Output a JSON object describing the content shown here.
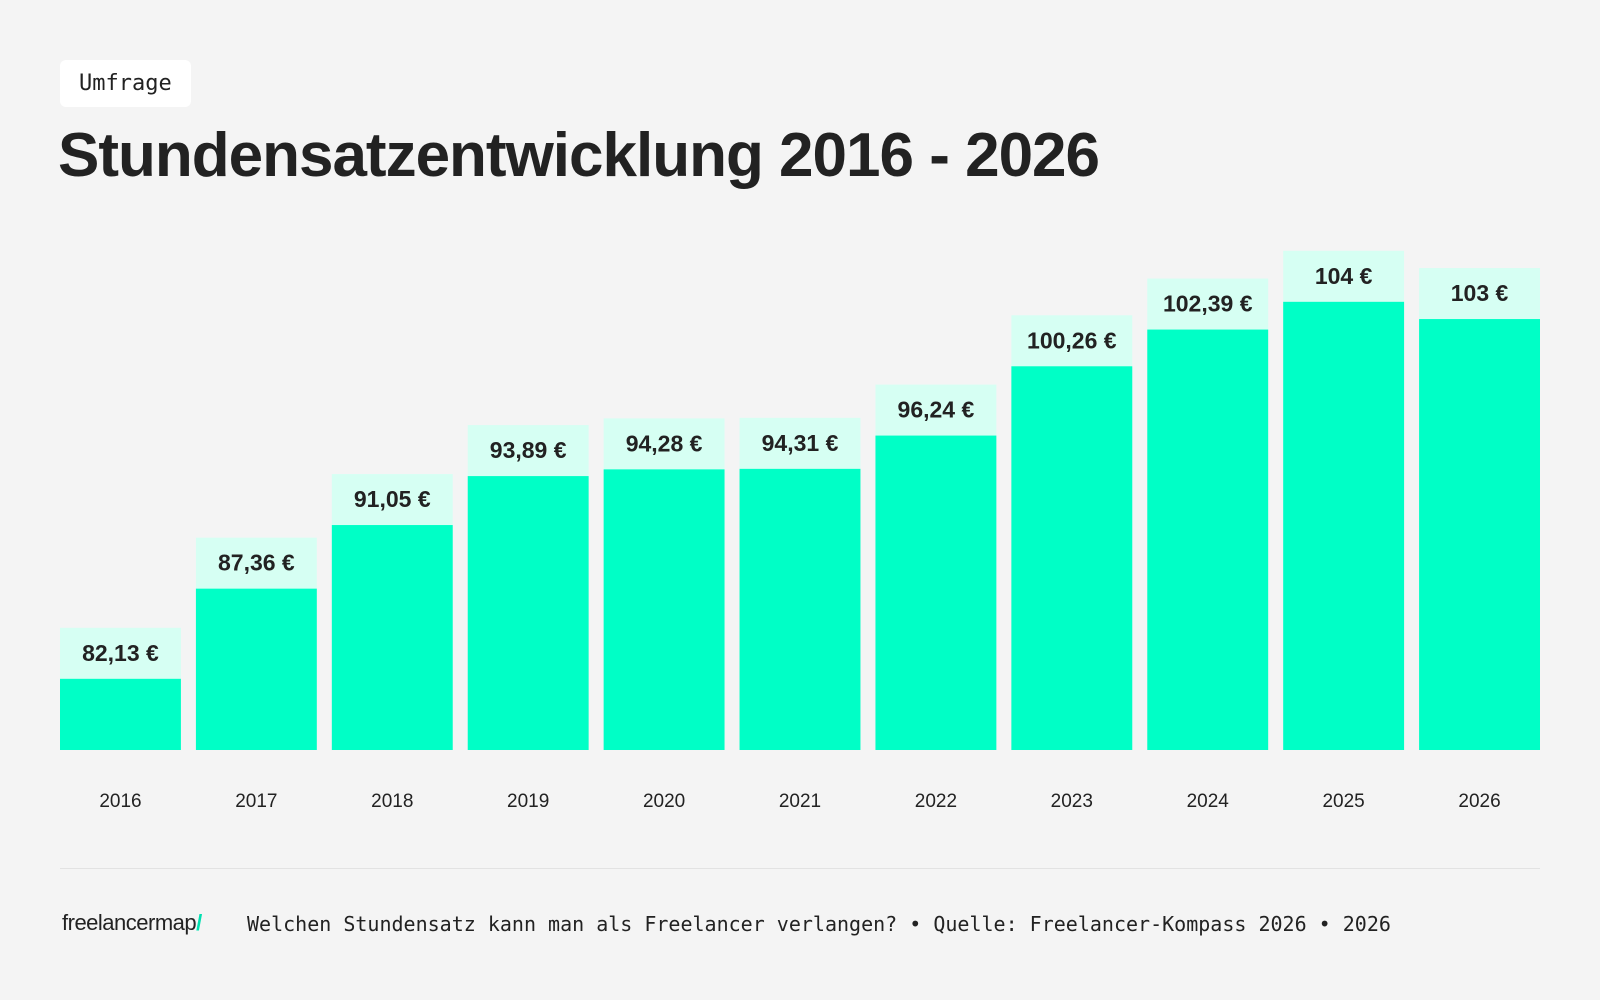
{
  "tag": "Umfrage",
  "title": "Stundensatzentwicklung 2016 - 2026",
  "footer": {
    "logo_text": "freelancermap",
    "logo_mark": "/",
    "caption": "Welchen Stundensatz kann man als Freelancer verlangen? • Quelle: Freelancer-Kompass 2026 • 2026"
  },
  "colors": {
    "bar": "#00ffc6",
    "label_box": "#d6fff3",
    "text": "#222222",
    "background": "#f4f4f4"
  },
  "chart_data": {
    "type": "bar",
    "categories": [
      "2016",
      "2017",
      "2018",
      "2019",
      "2020",
      "2021",
      "2022",
      "2023",
      "2024",
      "2025",
      "2026"
    ],
    "values": [
      82.13,
      87.36,
      91.05,
      93.89,
      94.28,
      94.31,
      96.24,
      100.26,
      102.39,
      104,
      103
    ],
    "data_labels": [
      "82,13 €",
      "87,36 €",
      "91,05 €",
      "93,89 €",
      "94,28 €",
      "94,31 €",
      "96,24 €",
      "100,26 €",
      "102,39 €",
      "104 €",
      "103 €"
    ],
    "title": "Stundensatzentwicklung 2016 - 2026",
    "xlabel": "",
    "ylabel": "",
    "ylim": [
      78,
      104
    ],
    "grid": false,
    "legend": "none"
  }
}
